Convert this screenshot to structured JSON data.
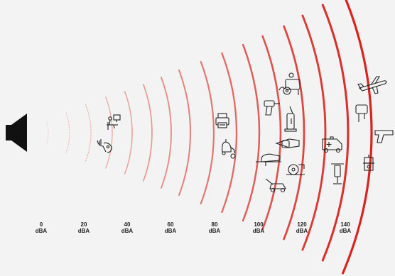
{
  "scale": [
    {
      "value": "0",
      "unit": "dBA"
    },
    {
      "value": "20",
      "unit": "dBA"
    },
    {
      "value": "40",
      "unit": "dBA"
    },
    {
      "value": "60",
      "unit": "dBA"
    },
    {
      "value": "80",
      "unit": "dBA"
    },
    {
      "value": "100",
      "unit": "dBA"
    },
    {
      "value": "120",
      "unit": "dBA"
    },
    {
      "value": "140",
      "unit": "dBA"
    }
  ],
  "colors": {
    "background": "#f3f3f3",
    "wave_quiet": "#f2d2cc",
    "wave_loud": "#d7241f",
    "icon": "#222222"
  },
  "icons": [
    "speaker-icon",
    "person-at-desk-icon",
    "whisper-icon",
    "printer-icon",
    "vacuum-cleaner-icon",
    "drill-icon",
    "generator-icon",
    "pressure-washer-icon",
    "chainsaw-icon",
    "jigsaw-icon",
    "circular-saw-icon",
    "lawn-mower-icon",
    "ambulance-icon",
    "jackhammer-icon",
    "airplane-icon",
    "nail-gun-icon",
    "pistol-icon",
    "fireworks-icon"
  ]
}
